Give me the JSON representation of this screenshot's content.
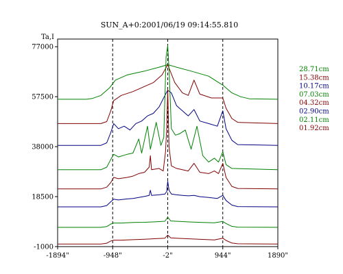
{
  "chart_data": {
    "type": "line",
    "title": "SUN_A+0:2001/06/19 09:14:55.810",
    "ylabel": "Ta,I",
    "xlabel": "",
    "x_ticks": [
      {
        "value": -1894,
        "label": "-1894\""
      },
      {
        "value": -948,
        "label": "-948\""
      },
      {
        "value": -2,
        "label": "-2\""
      },
      {
        "value": 944,
        "label": "944\""
      },
      {
        "value": 1890,
        "label": "1890\""
      }
    ],
    "y_ticks": [
      {
        "value": 77000,
        "label": "77000"
      },
      {
        "value": 57500,
        "label": "57500"
      },
      {
        "value": 38000,
        "label": "38000"
      },
      {
        "value": 18500,
        "label": "18500"
      },
      {
        "value": -1000,
        "label": "-1000"
      }
    ],
    "xlim": [
      -1894,
      1890
    ],
    "ylim": [
      -1000,
      80000
    ],
    "grid": false,
    "vertical_markers": [
      -948,
      -2,
      944
    ],
    "legend_position": "right",
    "series": [
      {
        "name": "28.71cm",
        "color": "#008000",
        "baseline": 56500,
        "peak": 70000,
        "profile": [
          [
            -1894,
            56500
          ],
          [
            -1400,
            56500
          ],
          [
            -1300,
            56800
          ],
          [
            -1150,
            58000
          ],
          [
            -1000,
            61000
          ],
          [
            -900,
            64000
          ],
          [
            -700,
            66000
          ],
          [
            -400,
            67500
          ],
          [
            -150,
            69000
          ],
          [
            -2,
            70000
          ],
          [
            150,
            69000
          ],
          [
            400,
            67500
          ],
          [
            700,
            65500
          ],
          [
            944,
            62000
          ],
          [
            1100,
            59000
          ],
          [
            1250,
            57500
          ],
          [
            1400,
            56700
          ],
          [
            1890,
            56500
          ]
        ]
      },
      {
        "name": "15.38cm",
        "color": "#800000",
        "baseline": 47000,
        "peak": 70000,
        "profile": [
          [
            -1894,
            47000
          ],
          [
            -1150,
            47000
          ],
          [
            -1050,
            47800
          ],
          [
            -980,
            52000
          ],
          [
            -930,
            56000
          ],
          [
            -800,
            58000
          ],
          [
            -600,
            59500
          ],
          [
            -400,
            61500
          ],
          [
            -250,
            63000
          ],
          [
            -100,
            66000
          ],
          [
            -2,
            70000
          ],
          [
            120,
            63000
          ],
          [
            250,
            59000
          ],
          [
            350,
            58000
          ],
          [
            450,
            64000
          ],
          [
            550,
            58500
          ],
          [
            750,
            57000
          ],
          [
            944,
            57000
          ],
          [
            1000,
            53000
          ],
          [
            1100,
            49000
          ],
          [
            1200,
            47500
          ],
          [
            1890,
            47000
          ]
        ]
      },
      {
        "name": "10.17cm",
        "color": "#000080",
        "baseline": 38500,
        "peak": 60000,
        "profile": [
          [
            -1894,
            38500
          ],
          [
            -1150,
            38500
          ],
          [
            -1050,
            39500
          ],
          [
            -980,
            43500
          ],
          [
            -930,
            47000
          ],
          [
            -850,
            45000
          ],
          [
            -750,
            46000
          ],
          [
            -650,
            44500
          ],
          [
            -550,
            47000
          ],
          [
            -450,
            48000
          ],
          [
            -350,
            50000
          ],
          [
            -250,
            51000
          ],
          [
            -150,
            53500
          ],
          [
            -50,
            58000
          ],
          [
            -2,
            60000
          ],
          [
            60,
            59000
          ],
          [
            150,
            54000
          ],
          [
            250,
            52000
          ],
          [
            350,
            50000
          ],
          [
            450,
            52500
          ],
          [
            550,
            48000
          ],
          [
            700,
            47000
          ],
          [
            850,
            46000
          ],
          [
            944,
            52000
          ],
          [
            1000,
            45000
          ],
          [
            1100,
            40500
          ],
          [
            1200,
            38800
          ],
          [
            1890,
            38500
          ]
        ]
      },
      {
        "name": "07.03cm",
        "color": "#008000",
        "baseline": 29000,
        "peak": 77500,
        "profile": [
          [
            -1894,
            29000
          ],
          [
            -1150,
            29000
          ],
          [
            -1050,
            30000
          ],
          [
            -980,
            33000
          ],
          [
            -930,
            35000
          ],
          [
            -850,
            34000
          ],
          [
            -700,
            35000
          ],
          [
            -600,
            35500
          ],
          [
            -500,
            41000
          ],
          [
            -450,
            35500
          ],
          [
            -350,
            46000
          ],
          [
            -300,
            37000
          ],
          [
            -200,
            47500
          ],
          [
            -120,
            38500
          ],
          [
            -70,
            41500
          ],
          [
            -30,
            73000
          ],
          [
            -2,
            77500
          ],
          [
            25,
            66000
          ],
          [
            60,
            45000
          ],
          [
            130,
            42500
          ],
          [
            200,
            43000
          ],
          [
            300,
            44500
          ],
          [
            400,
            37000
          ],
          [
            500,
            46000
          ],
          [
            600,
            34500
          ],
          [
            700,
            32000
          ],
          [
            800,
            33500
          ],
          [
            870,
            32000
          ],
          [
            944,
            36000
          ],
          [
            1000,
            31000
          ],
          [
            1100,
            29500
          ],
          [
            1890,
            29000
          ]
        ]
      },
      {
        "name": "04.32cm",
        "color": "#800000",
        "baseline": 21500,
        "peak": 60500,
        "profile": [
          [
            -1894,
            21500
          ],
          [
            -1150,
            21500
          ],
          [
            -1050,
            22200
          ],
          [
            -980,
            24000
          ],
          [
            -930,
            26000
          ],
          [
            -850,
            25500
          ],
          [
            -700,
            26000
          ],
          [
            -600,
            26500
          ],
          [
            -500,
            27500
          ],
          [
            -400,
            28000
          ],
          [
            -320,
            30000
          ],
          [
            -300,
            34500
          ],
          [
            -280,
            29000
          ],
          [
            -150,
            29500
          ],
          [
            -80,
            28500
          ],
          [
            -40,
            36000
          ],
          [
            -20,
            45000
          ],
          [
            -2,
            60500
          ],
          [
            20,
            38000
          ],
          [
            60,
            30500
          ],
          [
            150,
            29500
          ],
          [
            250,
            29000
          ],
          [
            350,
            28500
          ],
          [
            450,
            31500
          ],
          [
            550,
            28000
          ],
          [
            700,
            27500
          ],
          [
            800,
            28500
          ],
          [
            870,
            27500
          ],
          [
            944,
            31500
          ],
          [
            1000,
            26000
          ],
          [
            1100,
            22500
          ],
          [
            1200,
            21700
          ],
          [
            1890,
            21500
          ]
        ]
      },
      {
        "name": "02.90cm",
        "color": "#000080",
        "baseline": 14500,
        "peak": 24500,
        "profile": [
          [
            -1894,
            14500
          ],
          [
            -1150,
            14500
          ],
          [
            -1050,
            15000
          ],
          [
            -980,
            16500
          ],
          [
            -930,
            17500
          ],
          [
            -850,
            17200
          ],
          [
            -700,
            17600
          ],
          [
            -600,
            17800
          ],
          [
            -500,
            18200
          ],
          [
            -400,
            18600
          ],
          [
            -320,
            19000
          ],
          [
            -300,
            21000
          ],
          [
            -280,
            19000
          ],
          [
            -150,
            19200
          ],
          [
            -50,
            19500
          ],
          [
            -20,
            20500
          ],
          [
            -2,
            24500
          ],
          [
            20,
            21000
          ],
          [
            60,
            19500
          ],
          [
            150,
            19200
          ],
          [
            250,
            19000
          ],
          [
            350,
            18800
          ],
          [
            450,
            19000
          ],
          [
            550,
            18500
          ],
          [
            700,
            18200
          ],
          [
            850,
            17800
          ],
          [
            944,
            19000
          ],
          [
            1000,
            17000
          ],
          [
            1100,
            15200
          ],
          [
            1200,
            14600
          ],
          [
            1890,
            14500
          ]
        ]
      },
      {
        "name": "02.11cm",
        "color": "#008000",
        "baseline": 6500,
        "peak": 10500,
        "profile": [
          [
            -1894,
            6500
          ],
          [
            -1150,
            6500
          ],
          [
            -1050,
            6800
          ],
          [
            -980,
            7800
          ],
          [
            -930,
            8200
          ],
          [
            -800,
            8200
          ],
          [
            -600,
            8400
          ],
          [
            -400,
            8500
          ],
          [
            -200,
            8700
          ],
          [
            -50,
            8900
          ],
          [
            -2,
            10500
          ],
          [
            50,
            9000
          ],
          [
            200,
            8800
          ],
          [
            400,
            8600
          ],
          [
            600,
            8400
          ],
          [
            800,
            8300
          ],
          [
            944,
            8800
          ],
          [
            1000,
            8000
          ],
          [
            1100,
            6900
          ],
          [
            1200,
            6600
          ],
          [
            1890,
            6500
          ]
        ]
      },
      {
        "name": "01.92cm",
        "color": "#800000",
        "baseline": 0,
        "peak": 3500,
        "profile": [
          [
            -1894,
            0
          ],
          [
            -1150,
            0
          ],
          [
            -1050,
            300
          ],
          [
            -980,
            1200
          ],
          [
            -930,
            1500
          ],
          [
            -800,
            1500
          ],
          [
            -600,
            1700
          ],
          [
            -400,
            1900
          ],
          [
            -200,
            2100
          ],
          [
            -50,
            2300
          ],
          [
            -2,
            3500
          ],
          [
            50,
            2400
          ],
          [
            200,
            2200
          ],
          [
            400,
            2000
          ],
          [
            600,
            1800
          ],
          [
            800,
            1600
          ],
          [
            944,
            2300
          ],
          [
            1000,
            1400
          ],
          [
            1100,
            400
          ],
          [
            1200,
            100
          ],
          [
            1890,
            0
          ]
        ]
      }
    ]
  }
}
